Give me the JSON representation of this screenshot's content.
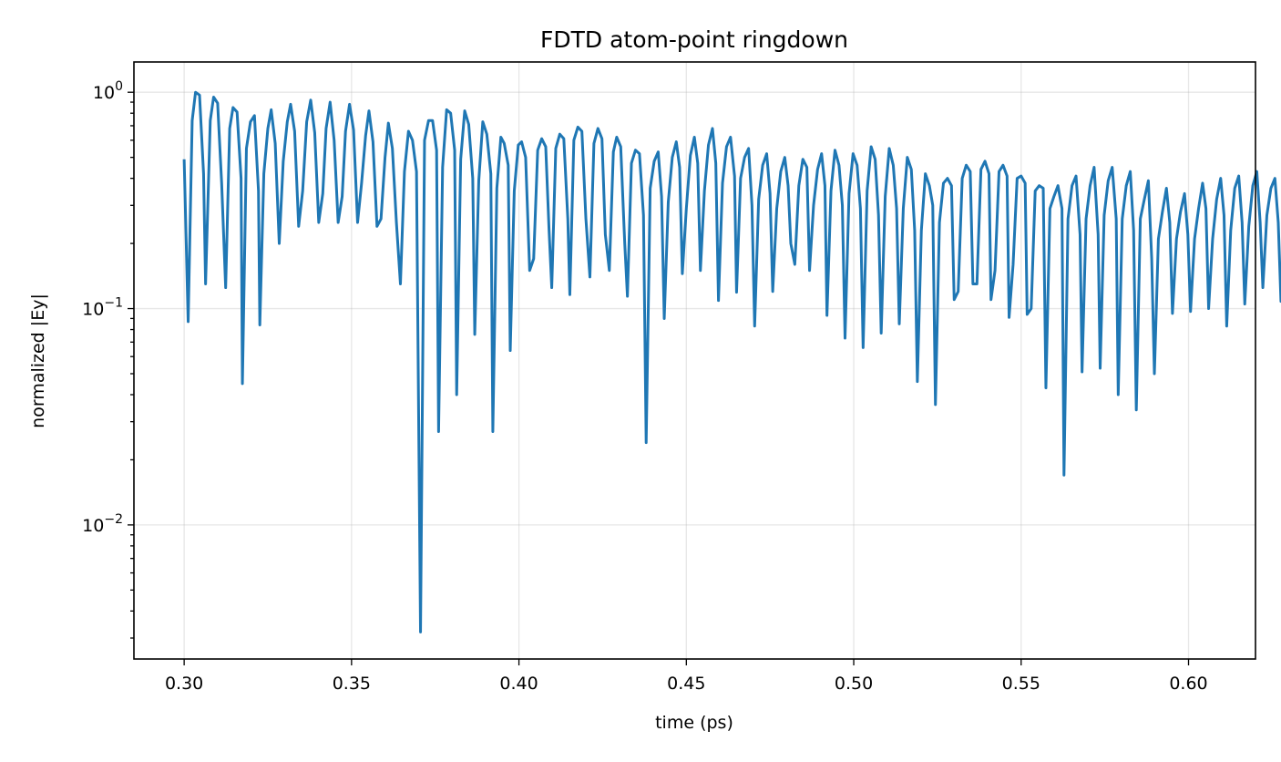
{
  "chart_data": {
    "type": "line",
    "title": "FDTD atom-point ringdown",
    "xlabel": "time (ps)",
    "ylabel": "normalized |Ey|",
    "xscale": "linear",
    "yscale": "log",
    "xlim": [
      0.285,
      0.62
    ],
    "ylim": [
      0.0024,
      1.38
    ],
    "grid": true,
    "x_ticks": [
      0.3,
      0.35,
      0.4,
      0.45,
      0.5,
      0.55,
      0.6
    ],
    "x_tick_labels": [
      "0.30",
      "0.35",
      "0.40",
      "0.45",
      "0.50",
      "0.55",
      "0.60"
    ],
    "y_ticks": [
      {
        "value": 0.01,
        "exp": "−2"
      },
      {
        "value": 0.1,
        "exp": "−1"
      },
      {
        "value": 1,
        "exp": "0"
      }
    ],
    "y_tick_base": "10",
    "series": [
      {
        "color": "#1f77b4",
        "points": [
          [
            0.3,
            0.49
          ],
          [
            0.3012,
            0.087
          ],
          [
            0.3024,
            0.74
          ],
          [
            0.3034,
            1.0
          ],
          [
            0.3046,
            0.97
          ],
          [
            0.3058,
            0.42
          ],
          [
            0.3064,
            0.13
          ],
          [
            0.3078,
            0.74
          ],
          [
            0.3088,
            0.95
          ],
          [
            0.31,
            0.89
          ],
          [
            0.3112,
            0.38
          ],
          [
            0.3124,
            0.125
          ],
          [
            0.3136,
            0.68
          ],
          [
            0.3146,
            0.85
          ],
          [
            0.3158,
            0.81
          ],
          [
            0.317,
            0.4
          ],
          [
            0.3174,
            0.045
          ],
          [
            0.3186,
            0.55
          ],
          [
            0.3198,
            0.73
          ],
          [
            0.321,
            0.78
          ],
          [
            0.3222,
            0.35
          ],
          [
            0.3226,
            0.084
          ],
          [
            0.3238,
            0.42
          ],
          [
            0.325,
            0.68
          ],
          [
            0.326,
            0.83
          ],
          [
            0.3272,
            0.58
          ],
          [
            0.3284,
            0.2
          ],
          [
            0.3296,
            0.48
          ],
          [
            0.3308,
            0.73
          ],
          [
            0.3318,
            0.88
          ],
          [
            0.333,
            0.66
          ],
          [
            0.3342,
            0.24
          ],
          [
            0.3354,
            0.35
          ],
          [
            0.3366,
            0.73
          ],
          [
            0.3378,
            0.92
          ],
          [
            0.339,
            0.65
          ],
          [
            0.3402,
            0.25
          ],
          [
            0.3414,
            0.34
          ],
          [
            0.3424,
            0.68
          ],
          [
            0.3436,
            0.9
          ],
          [
            0.3448,
            0.6
          ],
          [
            0.346,
            0.25
          ],
          [
            0.3472,
            0.33
          ],
          [
            0.3482,
            0.66
          ],
          [
            0.3494,
            0.88
          ],
          [
            0.3506,
            0.67
          ],
          [
            0.3518,
            0.25
          ],
          [
            0.353,
            0.38
          ],
          [
            0.3542,
            0.63
          ],
          [
            0.3552,
            0.82
          ],
          [
            0.3564,
            0.59
          ],
          [
            0.3576,
            0.24
          ],
          [
            0.3588,
            0.26
          ],
          [
            0.36,
            0.5
          ],
          [
            0.361,
            0.72
          ],
          [
            0.3622,
            0.55
          ],
          [
            0.3634,
            0.25
          ],
          [
            0.3646,
            0.13
          ],
          [
            0.3658,
            0.43
          ],
          [
            0.367,
            0.66
          ],
          [
            0.3682,
            0.6
          ],
          [
            0.3694,
            0.43
          ],
          [
            0.3706,
            0.0032
          ],
          [
            0.3718,
            0.6
          ],
          [
            0.373,
            0.74
          ],
          [
            0.3742,
            0.74
          ],
          [
            0.3754,
            0.54
          ],
          [
            0.376,
            0.027
          ],
          [
            0.3772,
            0.45
          ],
          [
            0.3784,
            0.83
          ],
          [
            0.3796,
            0.8
          ],
          [
            0.3808,
            0.54
          ],
          [
            0.3814,
            0.04
          ],
          [
            0.3826,
            0.49
          ],
          [
            0.3838,
            0.82
          ],
          [
            0.385,
            0.71
          ],
          [
            0.3862,
            0.4
          ],
          [
            0.3868,
            0.076
          ],
          [
            0.388,
            0.39
          ],
          [
            0.3892,
            0.73
          ],
          [
            0.3904,
            0.64
          ],
          [
            0.3916,
            0.42
          ],
          [
            0.3922,
            0.027
          ],
          [
            0.3934,
            0.36
          ],
          [
            0.3946,
            0.62
          ],
          [
            0.3956,
            0.58
          ],
          [
            0.3968,
            0.46
          ],
          [
            0.3974,
            0.064
          ],
          [
            0.3986,
            0.35
          ],
          [
            0.3998,
            0.57
          ],
          [
            0.4008,
            0.59
          ],
          [
            0.402,
            0.5
          ],
          [
            0.4032,
            0.15
          ],
          [
            0.4044,
            0.17
          ],
          [
            0.4056,
            0.54
          ],
          [
            0.4068,
            0.61
          ],
          [
            0.408,
            0.56
          ],
          [
            0.409,
            0.23
          ],
          [
            0.4098,
            0.125
          ],
          [
            0.411,
            0.55
          ],
          [
            0.4122,
            0.64
          ],
          [
            0.4134,
            0.61
          ],
          [
            0.4146,
            0.26
          ],
          [
            0.4152,
            0.116
          ],
          [
            0.4164,
            0.6
          ],
          [
            0.4176,
            0.69
          ],
          [
            0.4188,
            0.66
          ],
          [
            0.42,
            0.26
          ],
          [
            0.4212,
            0.14
          ],
          [
            0.4224,
            0.58
          ],
          [
            0.4236,
            0.68
          ],
          [
            0.4248,
            0.61
          ],
          [
            0.4258,
            0.22
          ],
          [
            0.427,
            0.15
          ],
          [
            0.4282,
            0.53
          ],
          [
            0.4292,
            0.62
          ],
          [
            0.4304,
            0.56
          ],
          [
            0.4316,
            0.2
          ],
          [
            0.4324,
            0.114
          ],
          [
            0.4336,
            0.47
          ],
          [
            0.4348,
            0.54
          ],
          [
            0.436,
            0.52
          ],
          [
            0.4372,
            0.27
          ],
          [
            0.438,
            0.024
          ],
          [
            0.4392,
            0.36
          ],
          [
            0.4404,
            0.48
          ],
          [
            0.4416,
            0.53
          ],
          [
            0.4426,
            0.33
          ],
          [
            0.4434,
            0.09
          ],
          [
            0.4446,
            0.31
          ],
          [
            0.4458,
            0.5
          ],
          [
            0.447,
            0.59
          ],
          [
            0.448,
            0.45
          ],
          [
            0.4488,
            0.145
          ],
          [
            0.45,
            0.29
          ],
          [
            0.4512,
            0.51
          ],
          [
            0.4524,
            0.62
          ],
          [
            0.4534,
            0.47
          ],
          [
            0.4542,
            0.15
          ],
          [
            0.4554,
            0.35
          ],
          [
            0.4566,
            0.57
          ],
          [
            0.4578,
            0.68
          ],
          [
            0.4588,
            0.47
          ],
          [
            0.4596,
            0.109
          ],
          [
            0.4608,
            0.38
          ],
          [
            0.462,
            0.56
          ],
          [
            0.4632,
            0.62
          ],
          [
            0.4644,
            0.41
          ],
          [
            0.465,
            0.119
          ],
          [
            0.4662,
            0.4
          ],
          [
            0.4674,
            0.5
          ],
          [
            0.4686,
            0.55
          ],
          [
            0.4696,
            0.3
          ],
          [
            0.4704,
            0.083
          ],
          [
            0.4716,
            0.32
          ],
          [
            0.4728,
            0.46
          ],
          [
            0.474,
            0.52
          ],
          [
            0.475,
            0.34
          ],
          [
            0.4758,
            0.12
          ],
          [
            0.477,
            0.29
          ],
          [
            0.4782,
            0.43
          ],
          [
            0.4794,
            0.5
          ],
          [
            0.4804,
            0.37
          ],
          [
            0.4812,
            0.2
          ],
          [
            0.4824,
            0.16
          ],
          [
            0.4836,
            0.37
          ],
          [
            0.4848,
            0.49
          ],
          [
            0.486,
            0.45
          ],
          [
            0.4868,
            0.15
          ],
          [
            0.488,
            0.3
          ],
          [
            0.4892,
            0.44
          ],
          [
            0.4904,
            0.52
          ],
          [
            0.4914,
            0.37
          ],
          [
            0.492,
            0.093
          ],
          [
            0.4932,
            0.35
          ],
          [
            0.4944,
            0.54
          ],
          [
            0.4956,
            0.46
          ],
          [
            0.4966,
            0.3
          ],
          [
            0.4974,
            0.073
          ],
          [
            0.4986,
            0.34
          ],
          [
            0.4998,
            0.52
          ],
          [
            0.501,
            0.46
          ],
          [
            0.502,
            0.29
          ],
          [
            0.5028,
            0.066
          ],
          [
            0.504,
            0.35
          ],
          [
            0.5052,
            0.56
          ],
          [
            0.5064,
            0.49
          ],
          [
            0.5074,
            0.27
          ],
          [
            0.5082,
            0.077
          ],
          [
            0.5094,
            0.33
          ],
          [
            0.5106,
            0.55
          ],
          [
            0.5118,
            0.46
          ],
          [
            0.5128,
            0.29
          ],
          [
            0.5136,
            0.085
          ],
          [
            0.5148,
            0.29
          ],
          [
            0.516,
            0.5
          ],
          [
            0.5172,
            0.44
          ],
          [
            0.5182,
            0.23
          ],
          [
            0.519,
            0.046
          ],
          [
            0.5202,
            0.23
          ],
          [
            0.5214,
            0.42
          ],
          [
            0.5226,
            0.37
          ],
          [
            0.5236,
            0.3
          ],
          [
            0.5244,
            0.036
          ],
          [
            0.5256,
            0.25
          ],
          [
            0.5268,
            0.38
          ],
          [
            0.528,
            0.4
          ],
          [
            0.5292,
            0.37
          ],
          [
            0.53,
            0.11
          ],
          [
            0.5312,
            0.12
          ],
          [
            0.5324,
            0.4
          ],
          [
            0.5336,
            0.46
          ],
          [
            0.5348,
            0.43
          ],
          [
            0.5356,
            0.13
          ],
          [
            0.5368,
            0.13
          ],
          [
            0.538,
            0.44
          ],
          [
            0.5392,
            0.48
          ],
          [
            0.5404,
            0.42
          ],
          [
            0.541,
            0.11
          ],
          [
            0.5422,
            0.15
          ],
          [
            0.5434,
            0.43
          ],
          [
            0.5446,
            0.46
          ],
          [
            0.5458,
            0.41
          ],
          [
            0.5464,
            0.091
          ],
          [
            0.5476,
            0.16
          ],
          [
            0.5488,
            0.4
          ],
          [
            0.55,
            0.41
          ],
          [
            0.5512,
            0.38
          ],
          [
            0.5518,
            0.094
          ],
          [
            0.553,
            0.1
          ],
          [
            0.5542,
            0.35
          ],
          [
            0.5554,
            0.37
          ],
          [
            0.5566,
            0.36
          ],
          [
            0.5574,
            0.043
          ],
          [
            0.5586,
            0.29
          ],
          [
            0.5598,
            0.33
          ],
          [
            0.561,
            0.37
          ],
          [
            0.5622,
            0.29
          ],
          [
            0.5628,
            0.017
          ],
          [
            0.564,
            0.26
          ],
          [
            0.5652,
            0.37
          ],
          [
            0.5664,
            0.41
          ],
          [
            0.5676,
            0.22
          ],
          [
            0.5682,
            0.051
          ],
          [
            0.5694,
            0.26
          ],
          [
            0.5706,
            0.37
          ],
          [
            0.5718,
            0.45
          ],
          [
            0.573,
            0.22
          ],
          [
            0.5736,
            0.053
          ],
          [
            0.5748,
            0.27
          ],
          [
            0.576,
            0.39
          ],
          [
            0.5772,
            0.45
          ],
          [
            0.5784,
            0.26
          ],
          [
            0.579,
            0.04
          ],
          [
            0.5802,
            0.26
          ],
          [
            0.5814,
            0.37
          ],
          [
            0.5826,
            0.43
          ],
          [
            0.5836,
            0.23
          ],
          [
            0.5844,
            0.034
          ],
          [
            0.5856,
            0.26
          ],
          [
            0.5868,
            0.32
          ],
          [
            0.588,
            0.39
          ],
          [
            0.589,
            0.17
          ],
          [
            0.5898,
            0.05
          ],
          [
            0.591,
            0.21
          ],
          [
            0.5922,
            0.28
          ],
          [
            0.5934,
            0.36
          ],
          [
            0.5944,
            0.25
          ],
          [
            0.5952,
            0.095
          ],
          [
            0.5964,
            0.21
          ],
          [
            0.5976,
            0.28
          ],
          [
            0.5988,
            0.34
          ],
          [
            0.5998,
            0.22
          ],
          [
            0.6006,
            0.097
          ],
          [
            0.6018,
            0.21
          ],
          [
            0.603,
            0.29
          ],
          [
            0.6042,
            0.38
          ],
          [
            0.6052,
            0.29
          ],
          [
            0.606,
            0.1
          ],
          [
            0.6072,
            0.21
          ],
          [
            0.6084,
            0.32
          ],
          [
            0.6096,
            0.4
          ],
          [
            0.6106,
            0.27
          ],
          [
            0.6114,
            0.083
          ],
          [
            0.6126,
            0.23
          ],
          [
            0.6138,
            0.36
          ],
          [
            0.615,
            0.41
          ],
          [
            0.616,
            0.25
          ],
          [
            0.6168,
            0.105
          ],
          [
            0.618,
            0.24
          ],
          [
            0.6192,
            0.37
          ],
          [
            0.6204,
            0.43
          ],
          [
            0.6214,
            0.25
          ],
          [
            0.6222,
            0.125
          ],
          [
            0.6234,
            0.27
          ],
          [
            0.6246,
            0.36
          ],
          [
            0.6258,
            0.4
          ],
          [
            0.6268,
            0.25
          ],
          [
            0.6276,
            0.108
          ],
          [
            0.6288,
            0.22
          ],
          [
            0.63,
            0.35
          ],
          [
            0.6312,
            0.29
          ],
          [
            0.6322,
            0.19
          ],
          [
            0.633,
            0.064
          ],
          [
            0.634,
            0.17
          ]
        ]
      }
    ]
  }
}
